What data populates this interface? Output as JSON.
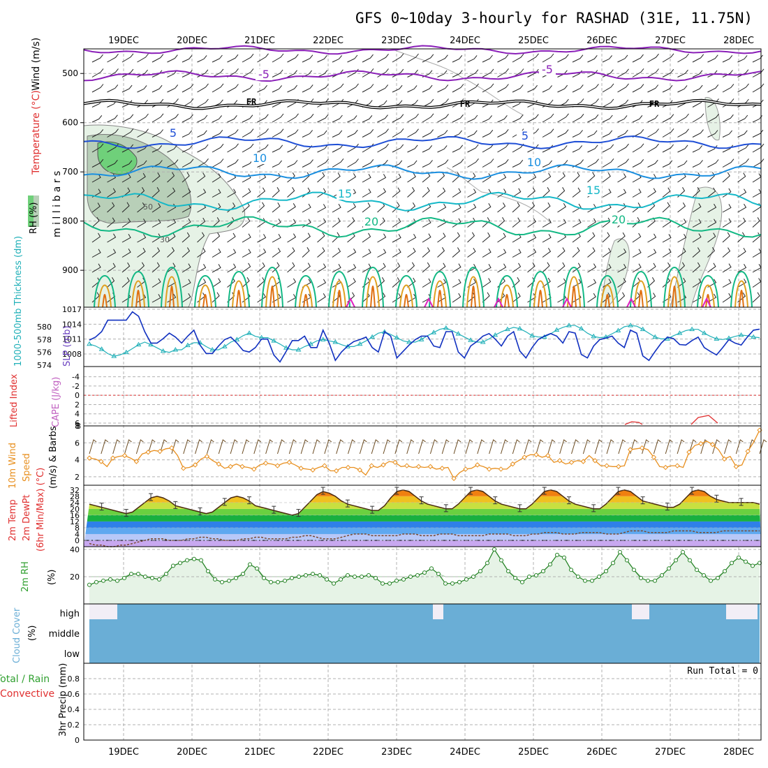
{
  "title": "GFS 0~10day 3-hourly for RASHAD (31E, 11.75N)",
  "colors": {
    "purple": "#8a1fb8",
    "black": "#000000",
    "blue5": "#1f4fd6",
    "blue10": "#1a8fe0",
    "teal15": "#15b8c8",
    "green20": "#12b884",
    "orange": "#e0a020",
    "darkorange": "#e07010",
    "magenta": "#e020c0",
    "slp": "#1030c0",
    "thick": "#20b0b8",
    "wind": "#e89020",
    "rh": "#30a030",
    "cloud": "#6aaed6",
    "red": "#e03030",
    "grid": "#b0b0b0"
  },
  "chart_data": [
    {
      "id": "upper_air",
      "type": "contour",
      "ylabel_wind": "Wind (m/s)",
      "ylabel_temp": "Temperature (°C)",
      "ylabel_rh": "RH (%)",
      "ylabel_pressure": "m i l l i b a r s",
      "y_ticks": [
        500,
        600,
        700,
        800,
        900
      ],
      "ylim": [
        450,
        975
      ],
      "x_ticks": [
        "19DEC",
        "20DEC",
        "21DEC",
        "22DEC",
        "23DEC",
        "24DEC",
        "25DEC",
        "26DEC",
        "27DEC",
        "28DEC"
      ],
      "contour_labels": [
        {
          "text": "-5",
          "level": -5
        },
        {
          "text": "-5",
          "level": -5
        },
        {
          "text": "FR",
          "level": 0
        },
        {
          "text": "FR",
          "level": 0
        },
        {
          "text": "FR",
          "level": 0
        },
        {
          "text": "5",
          "level": 5
        },
        {
          "text": "5",
          "level": 5
        },
        {
          "text": "10",
          "level": 10
        },
        {
          "text": "10",
          "level": 10
        },
        {
          "text": "15",
          "level": 15
        },
        {
          "text": "15",
          "level": 15
        },
        {
          "text": "20",
          "level": 20
        },
        {
          "text": "20",
          "level": 20
        },
        {
          "text": "50",
          "level": 50
        },
        {
          "text": "30",
          "level": 30
        }
      ],
      "isotherm_levels_mb": {
        "-10": 452,
        "-5": 505,
        "0": 563,
        "5": 640,
        "10": 700,
        "15": 760,
        "20": 812
      }
    },
    {
      "id": "slp_thickness",
      "type": "line",
      "ylabel_left": "1000-500mb Thickness (dm)",
      "ylabel_right": "SLP (mb)",
      "slp_ticks": [
        1008,
        1011,
        1014,
        1017
      ],
      "thickness_ticks": [
        574,
        576,
        578,
        580
      ],
      "series": [
        {
          "name": "SLP (mb)",
          "values": [
            1010.8,
            1011.4,
            1012.5,
            1014.8,
            1014.8,
            1014.8,
            1014.8,
            1016.5,
            1015.6,
            1012.5,
            1010.2,
            1010.2,
            1011.1,
            1012.2,
            1011.4,
            1010.2,
            1011.6,
            1012.8,
            1009.8,
            1008.1,
            1008.1,
            1009.6,
            1010.9,
            1011.4,
            1010.2,
            1008.7,
            1008.4,
            1009.3,
            1011.0,
            1011.0,
            1007.8,
            1006.4,
            1008.5,
            1010.7,
            1010.7,
            1011.6,
            1009.3,
            1009.3,
            1012.8,
            1010.2,
            1006.7,
            1008.4,
            1009.6,
            1010.5,
            1010.9,
            1011.4,
            1009.3,
            1008.4,
            1012.5,
            1011.6,
            1007.2,
            1008.5,
            1009.8,
            1010.9,
            1011.6,
            1011.6,
            1009.6,
            1009.3,
            1012.5,
            1012.5,
            1008.4,
            1007.2,
            1009.6,
            1010.5,
            1011.6,
            1012.1,
            1011.0,
            1009.6,
            1011.6,
            1012.5,
            1008.6,
            1007.2,
            1009.3,
            1010.9,
            1011.6,
            1012.1,
            1011.6,
            1010.2,
            1012.5,
            1012.2,
            1007.9,
            1007.2,
            1009.6,
            1010.9,
            1011.2,
            1011.6,
            1010.2,
            1009.3,
            1012.8,
            1012.2,
            1007.6,
            1006.7,
            1008.5,
            1010.2,
            1011.4,
            1011.1,
            1009.9,
            1009.8,
            1010.7,
            1011.4,
            1009.3,
            1008.5,
            1007.8,
            1009.3,
            1010.9,
            1010.2,
            1009.8,
            1011.4,
            1012.8,
            1013.0
          ]
        },
        {
          "name": "Thickness (dm)",
          "values": [
            577.3,
            577.0,
            576.5,
            575.8,
            575.4,
            575.6,
            576.0,
            576.6,
            577.2,
            577.6,
            577.2,
            576.7,
            576.2,
            576.0,
            576.4,
            576.4,
            577.1,
            577.5,
            577.5,
            576.9,
            576.4,
            576.4,
            576.9,
            577.6,
            578.0,
            578.6,
            579.0,
            578.5,
            578.3,
            578.3,
            577.8,
            577.3,
            576.7,
            576.4,
            576.4,
            576.9,
            577.3,
            577.8,
            578.0,
            577.8,
            577.6,
            577.2,
            576.9,
            576.9,
            577.3,
            577.8,
            578.4,
            579.0,
            579.2,
            578.8,
            578.3,
            577.8,
            577.6,
            577.6,
            578.0,
            578.6,
            579.1,
            579.6,
            579.8,
            579.4,
            578.9,
            578.4,
            577.9,
            577.6,
            577.6,
            578.1,
            578.7,
            579.2,
            579.6,
            579.9,
            579.7,
            579.2,
            578.6,
            578.4,
            578.4,
            578.9,
            579.5,
            579.9,
            580.2,
            580.2,
            579.7,
            579.0,
            578.5,
            578.3,
            578.4,
            578.9,
            579.4,
            580.0,
            580.2,
            580.1,
            579.6,
            579.0,
            578.4,
            578.1,
            578.1,
            578.6,
            579.0,
            579.4,
            579.6,
            579.6,
            579.0,
            578.5,
            578.1,
            578.0,
            578.2,
            578.5,
            578.7,
            578.6,
            578.4,
            578.3
          ]
        }
      ]
    },
    {
      "id": "cape_li",
      "type": "line",
      "ylabel_left": "Lifted Index",
      "ylabel_right": "CAPE (J/kg)",
      "li_ticks": [
        -4,
        -2,
        0,
        2,
        4,
        6
      ],
      "cape_ticks": [
        8
      ],
      "zero_line": 0
    },
    {
      "id": "wind10m",
      "type": "line",
      "ylabel": "10m Wind Speed & Barbs (m/s)",
      "y_ticks": [
        2,
        4,
        6,
        8
      ],
      "ylim": [
        1,
        8
      ],
      "series": [
        {
          "name": "10m Wind Speed (m/s)",
          "values": [
            4.2,
            4.1,
            3.8,
            3.2,
            4.2,
            4.4,
            4.5,
            4.2,
            3.8,
            4.7,
            4.9,
            5.1,
            5.0,
            5.3,
            5.4,
            4.5,
            3.0,
            3.1,
            3.4,
            4.1,
            4.4,
            3.9,
            3.5,
            3.0,
            3.2,
            3.5,
            3.2,
            3.1,
            2.9,
            3.4,
            3.6,
            3.5,
            3.3,
            3.6,
            3.7,
            3.4,
            3.0,
            2.9,
            2.8,
            3.1,
            3.3,
            2.7,
            2.7,
            3.1,
            3.1,
            3.1,
            2.8,
            2.2,
            3.3,
            3.1,
            3.4,
            3.8,
            3.7,
            3.2,
            3.3,
            3.1,
            3.2,
            3.1,
            3.2,
            2.9,
            3.0,
            3.1,
            1.8,
            2.5,
            2.9,
            3.0,
            3.4,
            3.2,
            2.9,
            3.0,
            2.9,
            2.9,
            3.5,
            3.9,
            4.3,
            4.6,
            4.6,
            4.3,
            4.5,
            3.7,
            3.9,
            3.5,
            3.7,
            3.9,
            3.8,
            4.5,
            3.9,
            3.3,
            3.3,
            3.2,
            3.2,
            3.3,
            5.2,
            5.3,
            5.4,
            5.2,
            4.3,
            3.2,
            3.1,
            3.3,
            3.3,
            3.1,
            4.9,
            5.7,
            5.9,
            6.2,
            5.8,
            5.2,
            4.1,
            4.4,
            3.2,
            3.4,
            5.0,
            6.1,
            7.5
          ]
        }
      ]
    },
    {
      "id": "temp2m",
      "type": "area",
      "ylabel": "2m Temp 2m DewPt (6hr Min/Max) (°C)",
      "y_ticks": [
        0,
        8,
        16,
        24,
        32
      ],
      "ylim": [
        -4,
        35
      ],
      "series": [
        {
          "name": "2m Temp (°C)",
          "values": [
            23,
            22,
            21,
            20,
            19,
            18,
            17,
            18,
            21,
            24,
            27,
            28,
            27,
            25,
            22,
            21,
            20,
            19,
            18,
            17,
            18,
            21,
            24,
            27,
            28,
            27,
            25,
            22,
            21,
            20,
            19,
            18,
            17,
            16,
            17,
            21,
            25,
            29,
            31,
            30,
            28,
            25,
            23,
            22,
            21,
            20,
            19,
            19,
            22,
            27,
            31,
            32,
            31,
            28,
            25,
            23,
            22,
            21,
            20,
            20,
            23,
            27,
            31,
            32,
            31,
            28,
            25,
            23,
            22,
            21,
            20,
            20,
            23,
            27,
            31,
            32,
            31,
            28,
            25,
            23,
            22,
            21,
            20,
            20,
            23,
            27,
            31,
            32,
            31,
            28,
            25,
            24,
            23,
            22,
            21,
            21,
            23,
            27,
            31,
            32,
            31,
            28,
            26,
            25,
            24,
            24,
            24,
            24,
            24,
            23
          ]
        },
        {
          "name": "2m DewPt (°C)",
          "values": [
            -2,
            -3,
            -3,
            -4,
            -4,
            -3,
            -3,
            -2,
            -1,
            0,
            1,
            1,
            1,
            0,
            0,
            0,
            1,
            1,
            2,
            2,
            1,
            1,
            0,
            0,
            0,
            1,
            1,
            2,
            2,
            1,
            1,
            1,
            1,
            2,
            2,
            3,
            3,
            2,
            1,
            1,
            1,
            2,
            3,
            4,
            4,
            4,
            3,
            3,
            3,
            3,
            3,
            4,
            4,
            4,
            3,
            3,
            3,
            4,
            4,
            4,
            3,
            3,
            3,
            3,
            3,
            4,
            4,
            4,
            4,
            3,
            3,
            3,
            4,
            4,
            5,
            5,
            5,
            4,
            4,
            4,
            5,
            5,
            5,
            5,
            4,
            4,
            4,
            5,
            6,
            6,
            6,
            5,
            5,
            5,
            5,
            6,
            6,
            6,
            6,
            5,
            5,
            5,
            5,
            6,
            6,
            6,
            6,
            6,
            6,
            6
          ]
        }
      ]
    },
    {
      "id": "rh2m",
      "type": "area",
      "ylabel": "2m RH (%)",
      "y_ticks": [
        20,
        40
      ],
      "ylim": [
        0,
        42
      ],
      "series": [
        {
          "name": "2m RH (%)",
          "values": [
            14,
            16,
            17,
            18,
            17,
            19,
            22,
            22,
            20,
            19,
            18,
            22,
            28,
            30,
            32,
            33,
            32,
            24,
            18,
            16,
            17,
            19,
            22,
            29,
            26,
            19,
            16,
            16,
            17,
            19,
            20,
            21,
            22,
            21,
            18,
            15,
            18,
            21,
            20,
            20,
            21,
            19,
            15,
            15,
            17,
            18,
            20,
            21,
            23,
            26,
            22,
            15,
            15,
            16,
            18,
            20,
            24,
            30,
            40,
            32,
            24,
            19,
            16,
            20,
            21,
            24,
            29,
            36,
            34,
            25,
            20,
            17,
            17,
            20,
            24,
            30,
            38,
            32,
            25,
            19,
            17,
            17,
            21,
            26,
            32,
            38,
            32,
            25,
            21,
            17,
            19,
            24,
            30,
            34,
            31,
            28,
            30
          ]
        }
      ]
    },
    {
      "id": "cloud",
      "type": "bar",
      "ylabel": "Cloud Cover (%)",
      "levels": [
        "high",
        "middle",
        "low"
      ]
    },
    {
      "id": "precip",
      "type": "bar",
      "ylabel_left": "Total / Rain",
      "ylabel_left2": "Convective",
      "ylabel": "3hr Precip (mm)",
      "y_ticks": [
        "0",
        "0.2",
        "0.4",
        "0.6",
        "0.8"
      ],
      "ylim": [
        0,
        1
      ],
      "run_total_label": "Run Total = 0",
      "values": []
    }
  ]
}
